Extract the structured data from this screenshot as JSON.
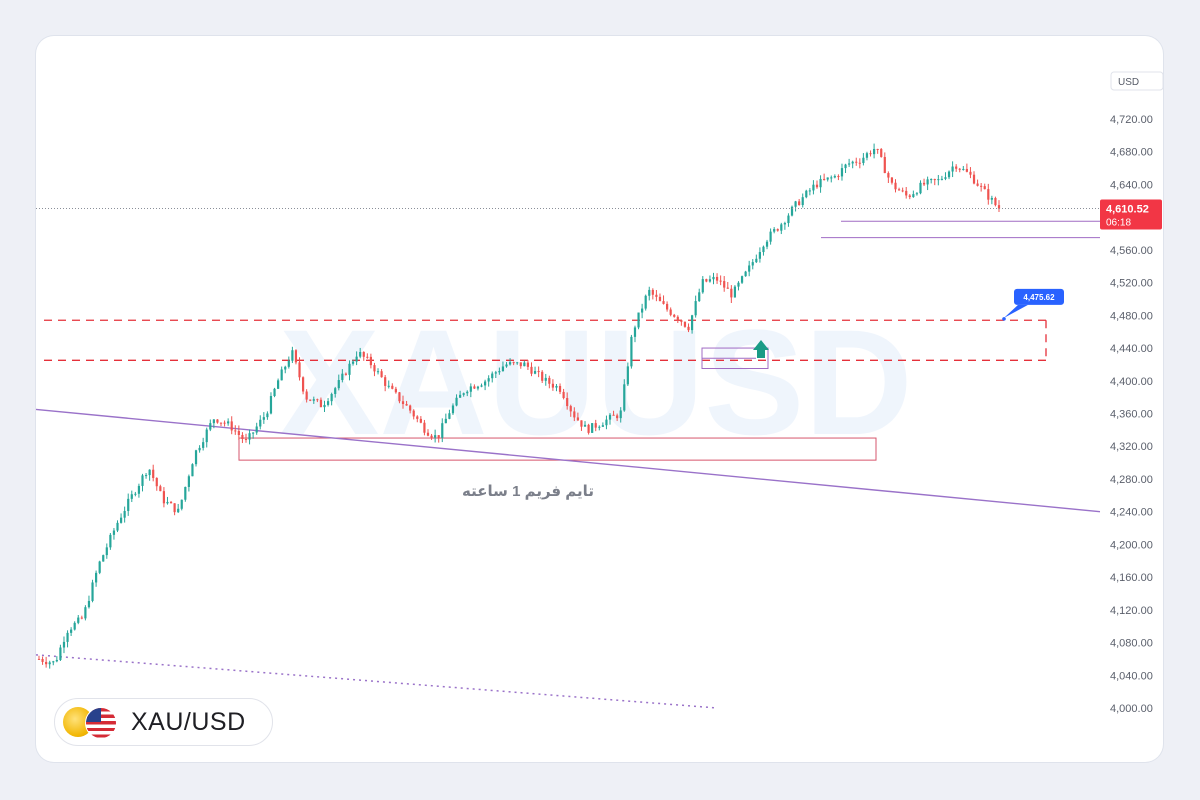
{
  "chart_data": {
    "type": "candlestick",
    "symbol": "XAU/USD",
    "watermark": "XAUUSD",
    "currency_label": "USD",
    "y_ticks": [
      "4,720.00",
      "4,680.00",
      "4,640.00",
      "4,600.00",
      "4,560.00",
      "4,520.00",
      "4,480.00",
      "4,440.00",
      "4,400.00",
      "4,360.00",
      "4,320.00",
      "4,280.00",
      "4,240.00",
      "4,200.00",
      "4,160.00",
      "4,120.00",
      "4,080.00",
      "4,040.00",
      "4,000.00"
    ],
    "y_tick_values": [
      4720,
      4680,
      4640,
      4600,
      4560,
      4520,
      4480,
      4440,
      4400,
      4360,
      4320,
      4280,
      4240,
      4200,
      4160,
      4120,
      4080,
      4040,
      4000
    ],
    "ylim": [
      4000,
      4720
    ],
    "candle_count": 270,
    "close_path": [
      [
        0,
        4060
      ],
      [
        8,
        4055
      ],
      [
        14,
        4095
      ],
      [
        22,
        4110
      ],
      [
        30,
        4175
      ],
      [
        40,
        4230
      ],
      [
        48,
        4265
      ],
      [
        55,
        4295
      ],
      [
        62,
        4255
      ],
      [
        70,
        4240
      ],
      [
        78,
        4310
      ],
      [
        88,
        4355
      ],
      [
        96,
        4345
      ],
      [
        104,
        4325
      ],
      [
        114,
        4360
      ],
      [
        120,
        4400
      ],
      [
        127,
        4435
      ],
      [
        134,
        4380
      ],
      [
        142,
        4370
      ],
      [
        150,
        4395
      ],
      [
        160,
        4435
      ],
      [
        167,
        4420
      ],
      [
        176,
        4390
      ],
      [
        186,
        4365
      ],
      [
        194,
        4340
      ],
      [
        200,
        4330
      ],
      [
        206,
        4362
      ],
      [
        214,
        4390
      ],
      [
        224,
        4400
      ],
      [
        234,
        4420
      ],
      [
        244,
        4420
      ],
      [
        254,
        4400
      ],
      [
        262,
        4390
      ],
      [
        268,
        4360
      ],
      [
        275,
        4340
      ],
      [
        285,
        4352
      ],
      [
        292,
        4360
      ],
      [
        298,
        4460
      ],
      [
        306,
        4510
      ],
      [
        314,
        4490
      ],
      [
        322,
        4475
      ],
      [
        326,
        4465
      ],
      [
        333,
        4520
      ],
      [
        340,
        4525
      ],
      [
        348,
        4505
      ],
      [
        356,
        4535
      ],
      [
        364,
        4570
      ],
      [
        372,
        4590
      ],
      [
        380,
        4615
      ],
      [
        390,
        4640
      ],
      [
        400,
        4650
      ],
      [
        406,
        4665
      ],
      [
        412,
        4670
      ],
      [
        420,
        4685
      ],
      [
        428,
        4640
      ],
      [
        436,
        4625
      ],
      [
        444,
        4640
      ],
      [
        452,
        4645
      ],
      [
        460,
        4665
      ],
      [
        468,
        4650
      ],
      [
        475,
        4630
      ],
      [
        482,
        4610
      ]
    ],
    "last_price": {
      "label": "4,610.52",
      "value": 4610.52,
      "countdown": "06:18"
    },
    "callout": {
      "label": "4,475.62",
      "value": 4475.62
    },
    "annotation": "تایم فریم 1 ساعته",
    "levels": {
      "dashed_zone": [
        4425,
        4474
      ],
      "support_zone": [
        4303,
        4330
      ],
      "upper_lines": [
        4595,
        4575
      ],
      "breakout_box": [
        4415,
        4440
      ]
    },
    "trendlines": [
      {
        "style": "solid",
        "from": [
          0,
          4365
        ],
        "to": [
          1,
          4240
        ]
      },
      {
        "style": "dotted",
        "from": [
          0,
          4065
        ],
        "to": [
          0.64,
          4000
        ]
      }
    ],
    "colors": {
      "up": "#26a69a",
      "down": "#ef5350",
      "zone": "#e5303a",
      "trend": "#9a72c9",
      "box": "#d6566c",
      "price_tag": "#f23645",
      "callout": "#2962ff"
    }
  },
  "badge": {
    "symbol": "XAU/USD",
    "icon_gold": "gold-coin-icon",
    "icon_flag": "us-flag-icon"
  }
}
